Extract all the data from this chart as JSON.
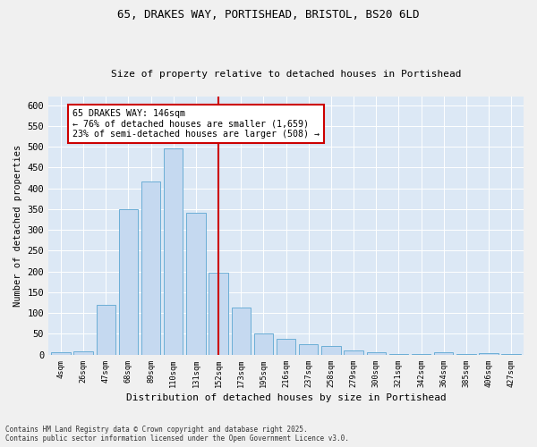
{
  "title1": "65, DRAKES WAY, PORTISHEAD, BRISTOL, BS20 6LD",
  "title2": "Size of property relative to detached houses in Portishead",
  "xlabel": "Distribution of detached houses by size in Portishead",
  "ylabel": "Number of detached properties",
  "categories": [
    "4sqm",
    "26sqm",
    "47sqm",
    "68sqm",
    "89sqm",
    "110sqm",
    "131sqm",
    "152sqm",
    "173sqm",
    "195sqm",
    "216sqm",
    "237sqm",
    "258sqm",
    "279sqm",
    "300sqm",
    "321sqm",
    "342sqm",
    "364sqm",
    "385sqm",
    "406sqm",
    "427sqm"
  ],
  "values": [
    6,
    8,
    120,
    349,
    416,
    496,
    342,
    197,
    114,
    50,
    38,
    25,
    20,
    10,
    5,
    2,
    1,
    5,
    1,
    3,
    2
  ],
  "bar_color": "#c5d9f0",
  "bar_edge_color": "#6baed6",
  "vline_color": "#cc0000",
  "annotation_title": "65 DRAKES WAY: 146sqm",
  "annotation_line1": "← 76% of detached houses are smaller (1,659)",
  "annotation_line2": "23% of semi-detached houses are larger (508) →",
  "annotation_box_color": "#cc0000",
  "bg_color": "#dce8f5",
  "grid_color": "#ffffff",
  "fig_bg_color": "#f0f0f0",
  "footer1": "Contains HM Land Registry data © Crown copyright and database right 2025.",
  "footer2": "Contains public sector information licensed under the Open Government Licence v3.0.",
  "ylim": [
    0,
    620
  ],
  "yticks": [
    0,
    50,
    100,
    150,
    200,
    250,
    300,
    350,
    400,
    450,
    500,
    550,
    600
  ]
}
